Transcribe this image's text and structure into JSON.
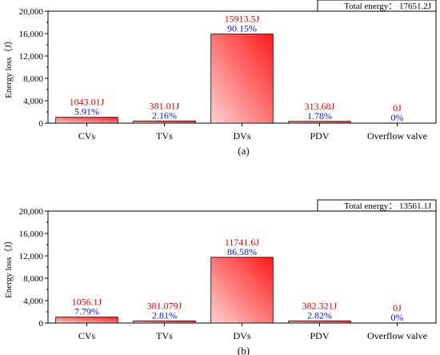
{
  "colors": {
    "bar_dark": "#ff1a1a",
    "bar_light": "#ffd0d0",
    "energy_label": "#e00000",
    "percent_label": "#1010e0",
    "axis": "#000000"
  },
  "chart_data": [
    {
      "type": "bar",
      "panel_label": "(a)",
      "annotation": "Total energy： 17651.2J",
      "ylabel": "Energy loss（J）",
      "ylim": [
        0,
        20000
      ],
      "yticks": [
        "0",
        "4,000",
        "8,000",
        "12,000",
        "16,000",
        "20,000"
      ],
      "categories": [
        "CVs",
        "TVs",
        "DVs",
        "PDV",
        "Overflow valve"
      ],
      "values": [
        1043.01,
        381.01,
        15913.5,
        313.68,
        0
      ],
      "energy_labels": [
        "1043.01J",
        "381.01J",
        "15913.5J",
        "313.68J",
        "0J"
      ],
      "percent_labels": [
        "5.91%",
        "2.16%",
        "90.15%",
        "1.78%",
        "0%"
      ],
      "grid": false
    },
    {
      "type": "bar",
      "panel_label": "(b)",
      "annotation": "Total energy： 13561.1J",
      "ylabel": "Energy loss（J）",
      "ylim": [
        0,
        20000
      ],
      "yticks": [
        "0",
        "4,000",
        "8,000",
        "12,000",
        "16,000",
        "20,000"
      ],
      "categories": [
        "CVs",
        "TVs",
        "DVs",
        "PDV",
        "Overflow valve"
      ],
      "values": [
        1056.1,
        381.079,
        11741.6,
        382.321,
        0
      ],
      "energy_labels": [
        "1056.1J",
        "381.079J",
        "11741.6J",
        "382.321J",
        "0J"
      ],
      "percent_labels": [
        "7.79%",
        "2.81%",
        "86.58%",
        "2.82%",
        "0%"
      ],
      "grid": false
    }
  ]
}
